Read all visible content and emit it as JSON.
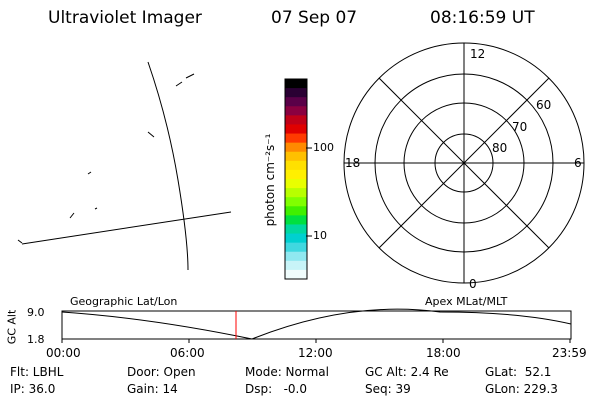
{
  "header": {
    "title": "Ultraviolet Imager",
    "date": "07 Sep 07",
    "time": "08:16:59 UT"
  },
  "colorbar": {
    "unit_label": "photon cm⁻²s⁻¹",
    "ticks": [
      "100",
      "10"
    ],
    "colors": [
      "#000000",
      "#2a0033",
      "#5a0048",
      "#8a0040",
      "#c00018",
      "#e00000",
      "#ff3a00",
      "#ff8a00",
      "#ffc000",
      "#ffe000",
      "#fff000",
      "#e8ff00",
      "#b8ff00",
      "#80ff00",
      "#40f000",
      "#00e040",
      "#00d8a0",
      "#00d0d0",
      "#40d8e0",
      "#90e8f0",
      "#c8f4f8",
      "#f0fcfc"
    ]
  },
  "polar": {
    "mlt_labels": [
      "12",
      "18",
      "6",
      "0"
    ],
    "lat_labels": [
      "60",
      "70",
      "80"
    ]
  },
  "timeline": {
    "axis_name": "GC Alt",
    "y_top": "9.0",
    "y_bottom": "1.8",
    "left_caption": "Geographic Lat/Lon",
    "right_caption": "Apex MLat/MLT",
    "time_ticks": [
      "00:00",
      "06:00",
      "12:00",
      "18:00",
      "23:59"
    ],
    "current_marker_color": "#ff0000"
  },
  "status": {
    "flt": "Flt: LBHL",
    "ip": "IP: 36.0",
    "door": "Door: Open",
    "gain": "Gain: 14",
    "mode": "Mode: Normal",
    "dsp": "Dsp:   -0.0",
    "gc_alt": "GC Alt: 2.4 Re",
    "seq": "Seq: 39",
    "glat": "GLat:  52.1",
    "glon": "GLon: 229.3"
  }
}
